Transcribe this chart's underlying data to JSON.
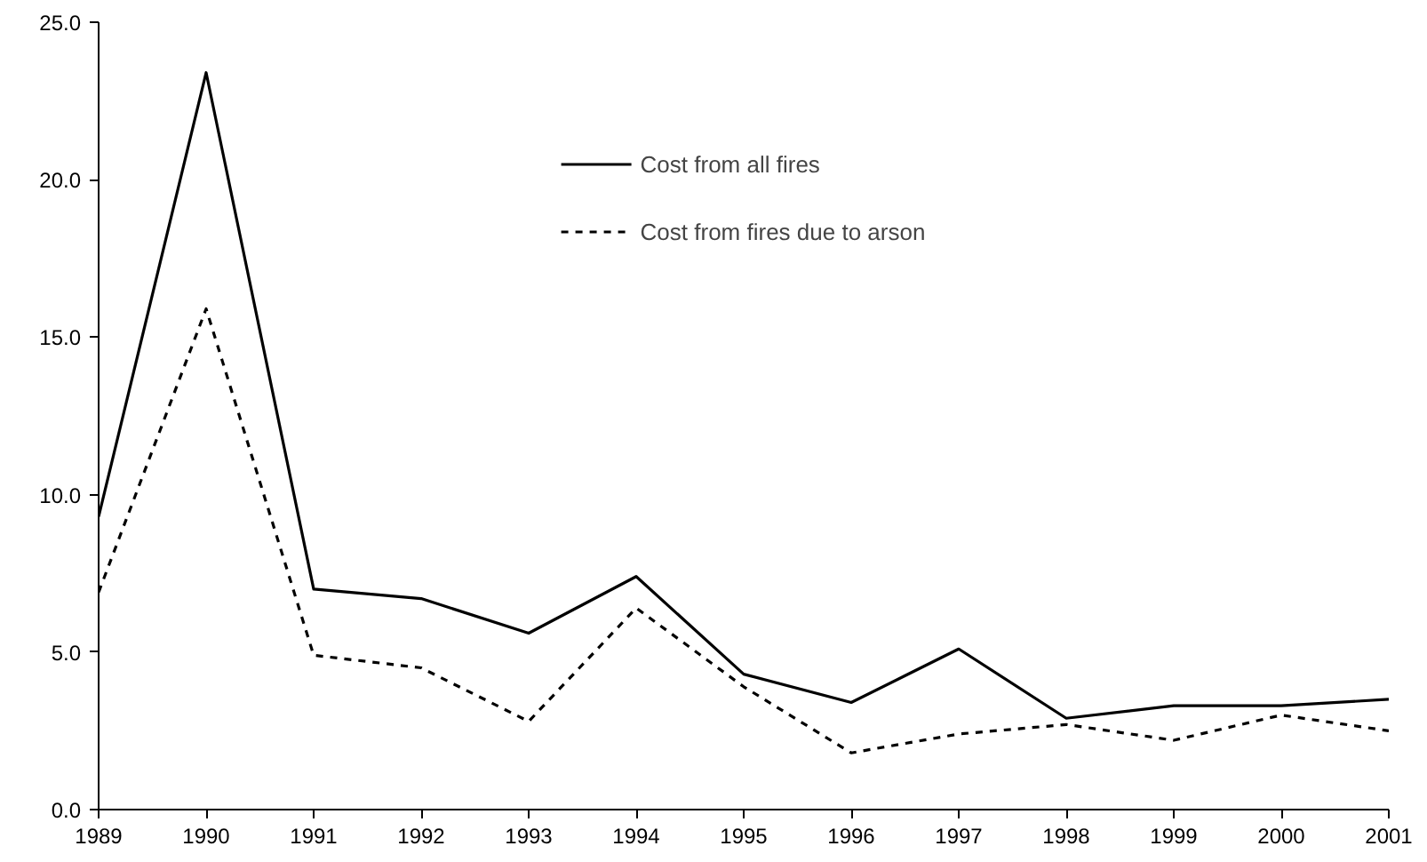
{
  "chart_data": {
    "type": "line",
    "x": [
      1989,
      1990,
      1991,
      1992,
      1993,
      1994,
      1995,
      1996,
      1997,
      1998,
      1999,
      2000,
      2001
    ],
    "series": [
      {
        "name": "Cost from all fires",
        "color": "#000000",
        "line_style": "solid",
        "values": [
          9.3,
          23.4,
          7.0,
          6.7,
          5.6,
          7.4,
          4.3,
          3.4,
          5.1,
          2.9,
          3.3,
          3.3,
          3.5
        ]
      },
      {
        "name": "Cost from fires due to arson",
        "color": "#000000",
        "line_style": "dashed",
        "values": [
          6.9,
          15.9,
          4.9,
          4.5,
          2.8,
          6.4,
          3.9,
          1.8,
          2.4,
          2.7,
          2.2,
          3.0,
          2.5
        ]
      }
    ],
    "xlim": [
      1989,
      2001
    ],
    "xticks": [
      1989,
      1990,
      1991,
      1992,
      1993,
      1994,
      1995,
      1996,
      1997,
      1998,
      1999,
      2000,
      2001
    ],
    "ylim": [
      0,
      25
    ],
    "yticks": [
      {
        "value": 0,
        "label": "0.0"
      },
      {
        "value": 5,
        "label": "5.0"
      },
      {
        "value": 10,
        "label": "10.0"
      },
      {
        "value": 15,
        "label": "15.0"
      },
      {
        "value": 20,
        "label": "20.0"
      },
      {
        "value": 25,
        "label": "25.0"
      }
    ],
    "grid": false,
    "legend": "top",
    "marker": "none"
  }
}
